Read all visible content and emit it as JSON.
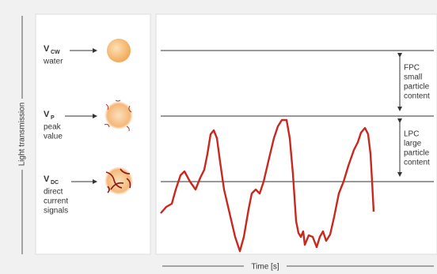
{
  "axis": {
    "y_label": "Light transmission",
    "x_label": "Time [s]"
  },
  "signals": [
    {
      "symbol": "V",
      "subscript": "CW",
      "description": [
        "water"
      ]
    },
    {
      "symbol": "V",
      "subscript": "P",
      "description": [
        "peak",
        "value"
      ]
    },
    {
      "symbol": "V",
      "subscript": "DC",
      "description": [
        "direct",
        "current",
        "signals"
      ]
    }
  ],
  "ranges": [
    {
      "abbr": "FPC",
      "description": [
        "small",
        "particle",
        "content"
      ]
    },
    {
      "abbr": "LPC",
      "description": [
        "large",
        "particle",
        "content"
      ]
    }
  ]
}
